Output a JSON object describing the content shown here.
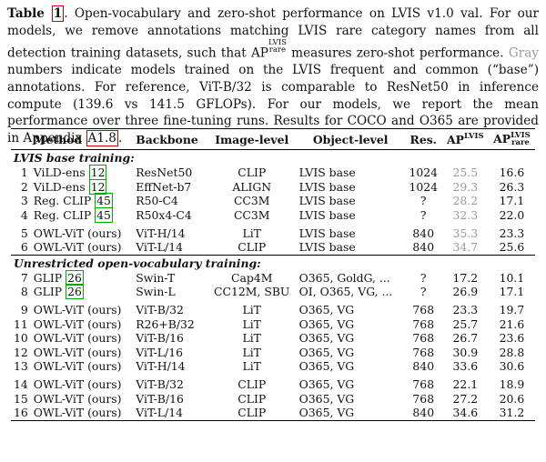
{
  "caption": {
    "label": "Table",
    "number": "1",
    "p1": ". Open-vocabulary and zero-shot performance on LVIS v1.0 val. For our models, we remove annotations matching LVIS rare category names from all detection training datasets, such that AP",
    "ap_sup": "LVIS",
    "ap_sub": "rare",
    "p2": " measures zero-shot performance.",
    "gray_word": "Gray",
    "p3": " numbers indicate models trained on the LVIS frequent and common (“base”) annotations. For reference, ViT-B/32 is comparable to ResNet50 in inference compute (139.6 vs 141.5 GFLOPs). For our models, we report the mean performance over three fine-tuning runs. Results for COCO and O365 are provided in Appendix",
    "appendix_ref": "A1.8",
    "p4": "."
  },
  "headers": {
    "method": "Method",
    "backbone": "Backbone",
    "image_level": "Image-level",
    "object_level": "Object-level",
    "res": "Res.",
    "ap": "AP",
    "ap_sup": "LVIS",
    "ap_rare": "AP",
    "ap_rare_sup": "LVIS",
    "ap_rare_sub": "rare"
  },
  "sections": [
    {
      "title": "LVIS base training:",
      "groups": [
        [
          {
            "n": "1",
            "method": "ViLD-ens",
            "cite": "12",
            "backbone": "ResNet50",
            "image": "CLIP",
            "object": "LVIS base",
            "res": "1024",
            "ap": "25.5",
            "ap_gray": true,
            "rare": "16.6"
          },
          {
            "n": "2",
            "method": "ViLD-ens",
            "cite": "12",
            "backbone": "EffNet-b7",
            "image": "ALIGN",
            "object": "LVIS base",
            "res": "1024",
            "ap": "29.3",
            "ap_gray": true,
            "rare": "26.3"
          },
          {
            "n": "3",
            "method": "Reg. CLIP",
            "cite": "45",
            "backbone": "R50-C4",
            "image": "CC3M",
            "object": "LVIS base",
            "res": "?",
            "ap": "28.2",
            "ap_gray": true,
            "rare": "17.1"
          },
          {
            "n": "4",
            "method": "Reg. CLIP",
            "cite": "45",
            "backbone": "R50x4-C4",
            "image": "CC3M",
            "object": "LVIS base",
            "res": "?",
            "ap": "32.3",
            "ap_gray": true,
            "rare": "22.0"
          }
        ],
        [
          {
            "n": "5",
            "method": "OWL-ViT (ours)",
            "cite": "",
            "backbone": "ViT-H/14",
            "image": "LiT",
            "object": "LVIS base",
            "res": "840",
            "ap": "35.3",
            "ap_gray": true,
            "rare": "23.3"
          },
          {
            "n": "6",
            "method": "OWL-ViT (ours)",
            "cite": "",
            "backbone": "ViT-L/14",
            "image": "CLIP",
            "object": "LVIS base",
            "res": "840",
            "ap": "34.7",
            "ap_gray": true,
            "rare": "25.6"
          }
        ]
      ]
    },
    {
      "title": "Unrestricted open-vocabulary training:",
      "groups": [
        [
          {
            "n": "7",
            "method": "GLIP",
            "cite": "26",
            "backbone": "Swin-T",
            "image": "Cap4M",
            "object": "O365, GoldG, ...",
            "res": "?",
            "ap": "17.2",
            "ap_gray": false,
            "rare": "10.1"
          },
          {
            "n": "8",
            "method": "GLIP",
            "cite": "26",
            "backbone": "Swin-L",
            "image": "CC12M, SBU",
            "object": "OI, O365, VG, ...",
            "res": "?",
            "ap": "26.9",
            "ap_gray": false,
            "rare": "17.1"
          }
        ],
        [
          {
            "n": "9",
            "method": "OWL-ViT (ours)",
            "cite": "",
            "backbone": "ViT-B/32",
            "image": "LiT",
            "object": "O365, VG",
            "res": "768",
            "ap": "23.3",
            "ap_gray": false,
            "rare": "19.7"
          },
          {
            "n": "11",
            "method": "OWL-ViT (ours)",
            "cite": "",
            "backbone": "R26+B/32",
            "image": "LiT",
            "object": "O365, VG",
            "res": "768",
            "ap": "25.7",
            "ap_gray": false,
            "rare": "21.6"
          },
          {
            "n": "10",
            "method": "OWL-ViT (ours)",
            "cite": "",
            "backbone": "ViT-B/16",
            "image": "LiT",
            "object": "O365, VG",
            "res": "768",
            "ap": "26.7",
            "ap_gray": false,
            "rare": "23.6"
          },
          {
            "n": "12",
            "method": "OWL-ViT (ours)",
            "cite": "",
            "backbone": "ViT-L/16",
            "image": "LiT",
            "object": "O365, VG",
            "res": "768",
            "ap": "30.9",
            "ap_gray": false,
            "rare": "28.8"
          },
          {
            "n": "13",
            "method": "OWL-ViT (ours)",
            "cite": "",
            "backbone": "ViT-H/14",
            "image": "LiT",
            "object": "O365, VG",
            "res": "840",
            "ap": "33.6",
            "ap_gray": false,
            "rare": "30.6"
          }
        ],
        [
          {
            "n": "14",
            "method": "OWL-ViT (ours)",
            "cite": "",
            "backbone": "ViT-B/32",
            "image": "CLIP",
            "object": "O365, VG",
            "res": "768",
            "ap": "22.1",
            "ap_gray": false,
            "rare": "18.9"
          },
          {
            "n": "15",
            "method": "OWL-ViT (ours)",
            "cite": "",
            "backbone": "ViT-B/16",
            "image": "CLIP",
            "object": "O365, VG",
            "res": "768",
            "ap": "27.2",
            "ap_gray": false,
            "rare": "20.6"
          },
          {
            "n": "16",
            "method": "OWL-ViT (ours)",
            "cite": "",
            "backbone": "ViT-L/14",
            "image": "CLIP",
            "object": "O365, VG",
            "res": "840",
            "ap": "34.6",
            "ap_gray": false,
            "rare": "31.2"
          }
        ]
      ]
    }
  ],
  "colors": {
    "gray_text": "#9a9a9a",
    "cite_border": "#00aa00",
    "appendix_border": "#d00000"
  }
}
